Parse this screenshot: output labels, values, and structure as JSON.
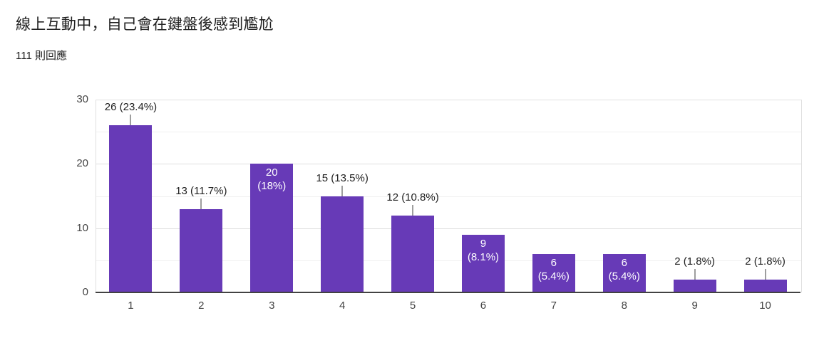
{
  "header": {
    "title": "線上互動中，自己會在鍵盤後感到尷尬",
    "response_count": "111 則回應"
  },
  "colors": {
    "bar": "#673ab7",
    "axis_line": "#424242",
    "gridline_major": "#e0e0e0",
    "gridline_minor": "#f1f1f1",
    "plot_border": "#e0e0e0",
    "leader_line": "#9e9e9e",
    "outside_label_text": "#212121",
    "inside_label_text": "#ffffff",
    "axis_tick_text": "#444444"
  },
  "chart_data": {
    "type": "bar",
    "title": "線上互動中，自己會在鍵盤後感到尷尬",
    "subtitle": "111 則回應",
    "total_responses": 111,
    "categories": [
      "1",
      "2",
      "3",
      "4",
      "5",
      "6",
      "7",
      "8",
      "9",
      "10"
    ],
    "values": [
      26,
      13,
      20,
      15,
      12,
      9,
      6,
      6,
      2,
      2
    ],
    "percentages": [
      "23.4%",
      "11.7%",
      "18%",
      "13.5%",
      "10.8%",
      "8.1%",
      "5.4%",
      "5.4%",
      "1.8%",
      "1.8%"
    ],
    "data_labels": [
      "26 (23.4%)",
      "13 (11.7%)",
      "20 (18%)",
      "15 (13.5%)",
      "12 (10.8%)",
      "9 (8.1%)",
      "6 (5.4%)",
      "6 (5.4%)",
      "2 (1.8%)",
      "2 (1.8%)"
    ],
    "label_placement": [
      "outside",
      "outside",
      "inside",
      "outside",
      "outside",
      "inside",
      "inside",
      "inside",
      "outside",
      "outside"
    ],
    "xlabel": "",
    "ylabel": "",
    "y_ticks": [
      0,
      10,
      20,
      30
    ],
    "ylim": [
      0,
      30
    ],
    "gridline_step": 5,
    "grid": true,
    "legend": "none"
  }
}
